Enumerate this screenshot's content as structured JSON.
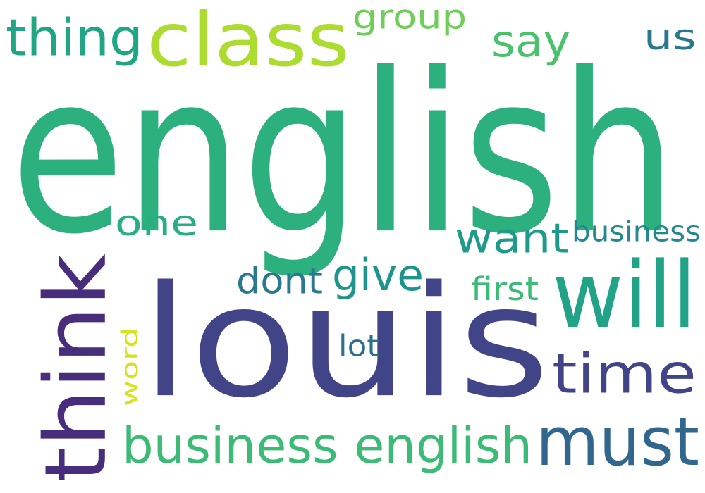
{
  "words": [
    {
      "id": "english-large",
      "text": "english",
      "color": "#2cb17e"
    },
    {
      "id": "louis",
      "text": "louis",
      "color": "#414487"
    },
    {
      "id": "class",
      "text": "class",
      "color": "#addc30"
    },
    {
      "id": "thing",
      "text": "thing",
      "color": "#21a685"
    },
    {
      "id": "group",
      "text": "group",
      "color": "#6ece58"
    },
    {
      "id": "say",
      "text": "say",
      "color": "#4ac16d"
    },
    {
      "id": "us",
      "text": "us",
      "color": "#2a788e"
    },
    {
      "id": "one",
      "text": "one",
      "color": "#28ae80"
    },
    {
      "id": "want",
      "text": "want",
      "color": "#1f9a8a"
    },
    {
      "id": "business-top",
      "text": "business",
      "color": "#23898e"
    },
    {
      "id": "dont",
      "text": "dont",
      "color": "#2a788e"
    },
    {
      "id": "give",
      "text": "give",
      "color": "#1f948c"
    },
    {
      "id": "first",
      "text": "first",
      "color": "#3bbb75"
    },
    {
      "id": "will",
      "text": "will",
      "color": "#20a386"
    },
    {
      "id": "think",
      "text": "think",
      "color": "#472d7b"
    },
    {
      "id": "word",
      "text": "word",
      "color": "#d8e219"
    },
    {
      "id": "lot",
      "text": "lot",
      "color": "#2c728e"
    },
    {
      "id": "time",
      "text": "time",
      "color": "#414487"
    },
    {
      "id": "business-english",
      "text": "business english",
      "color": "#3bbb75"
    },
    {
      "id": "must",
      "text": "must",
      "color": "#31668e"
    }
  ]
}
